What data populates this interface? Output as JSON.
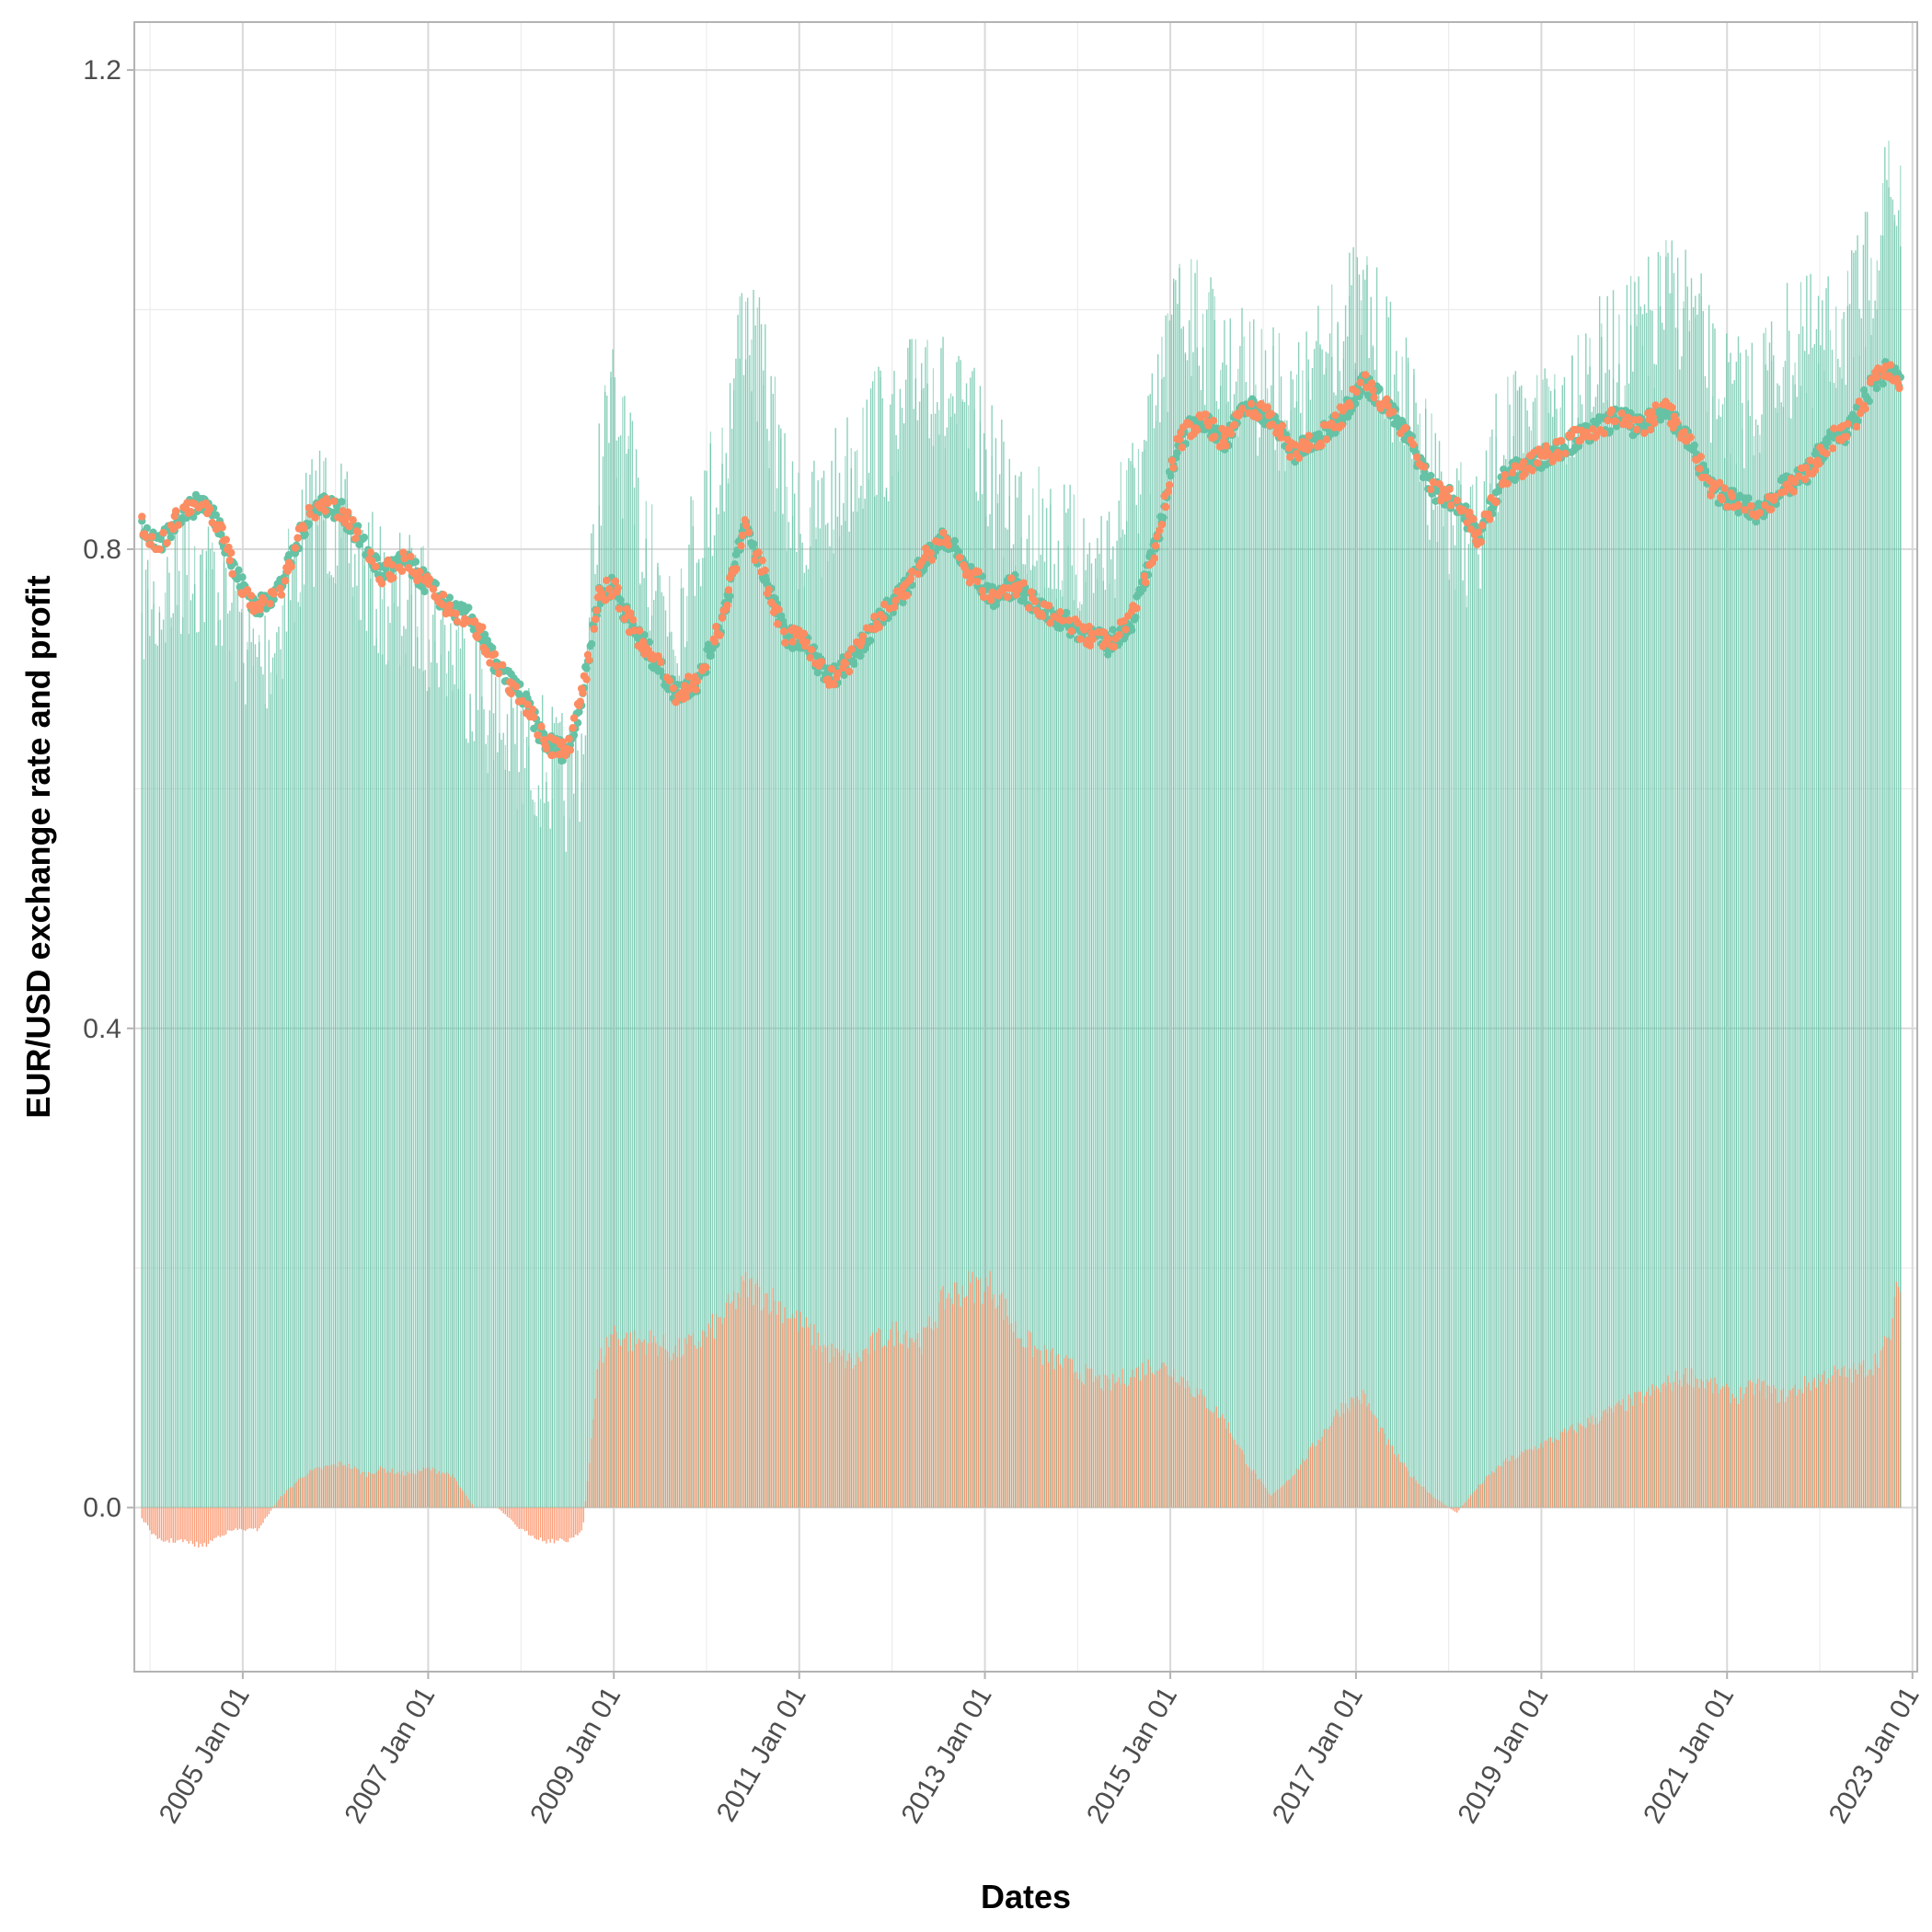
{
  "chart_data": {
    "type": "line",
    "title": "",
    "xlabel": "Dates",
    "ylabel": "EUR/USD exchange rate and profit",
    "x_type": "date",
    "xlim": [
      "2003-11-01",
      "2023-01-20"
    ],
    "ylim": [
      -0.137,
      1.24
    ],
    "x_ticks": [
      "2005-01-01",
      "2007-01-01",
      "2009-01-01",
      "2011-01-01",
      "2013-01-01",
      "2015-01-01",
      "2017-01-01",
      "2019-01-01",
      "2021-01-01",
      "2023-01-01"
    ],
    "x_tick_labels": [
      "2005 Jan 01",
      "2007 Jan 01",
      "2009 Jan 01",
      "2011 Jan 01",
      "2013 Jan 01",
      "2015 Jan 01",
      "2017 Jan 01",
      "2019 Jan 01",
      "2021 Jan 01",
      "2023 Jan 01"
    ],
    "y_ticks": [
      0.0,
      0.4,
      0.8,
      1.2
    ],
    "y_tick_labels": [
      "0.0",
      "0.4",
      "0.8",
      "1.2"
    ],
    "grid": true,
    "legend": "none",
    "colors": {
      "green": "#66c2a5",
      "orange": "#fc8d62",
      "panel_border": "#b3b3b3",
      "grid_major": "#d9d9d9",
      "grid_minor": "#ececec"
    },
    "series": [
      {
        "color": "#66c2a5",
        "style": "points",
        "x": [
          "2003-12-01",
          "2004-02-01",
          "2004-05-01",
          "2004-08-01",
          "2004-10-01",
          "2004-12-01",
          "2005-03-01",
          "2005-06-01",
          "2005-09-01",
          "2005-11-01",
          "2006-02-01",
          "2006-05-01",
          "2006-07-01",
          "2006-10-01",
          "2007-01-01",
          "2007-04-01",
          "2007-07-01",
          "2007-10-01",
          "2008-01-01",
          "2008-04-01",
          "2008-07-01",
          "2008-09-01",
          "2008-11-01",
          "2009-01-01",
          "2009-03-01",
          "2009-06-01",
          "2009-09-01",
          "2009-12-01",
          "2010-03-01",
          "2010-06-01",
          "2010-09-01",
          "2010-11-01",
          "2011-02-01",
          "2011-05-01",
          "2011-08-01",
          "2011-11-01",
          "2012-02-01",
          "2012-05-01",
          "2012-08-01",
          "2012-11-01",
          "2013-02-01",
          "2013-05-01",
          "2013-08-01",
          "2013-11-01",
          "2014-02-01",
          "2014-05-01",
          "2014-08-01",
          "2014-11-01",
          "2015-02-01",
          "2015-05-01",
          "2015-08-01",
          "2015-11-01",
          "2016-02-01",
          "2016-05-01",
          "2016-08-01",
          "2016-11-01",
          "2017-02-01",
          "2017-05-01",
          "2017-08-01",
          "2017-11-01",
          "2018-02-01",
          "2018-05-01",
          "2018-08-01",
          "2018-11-01",
          "2019-02-01",
          "2019-05-01",
          "2019-08-01",
          "2019-11-01",
          "2020-02-01",
          "2020-05-01",
          "2020-08-01",
          "2020-11-01",
          "2021-02-01",
          "2021-05-01",
          "2021-08-01",
          "2021-11-01",
          "2022-02-01",
          "2022-05-01",
          "2022-08-01",
          "2022-10-01",
          "2022-11-15"
        ],
        "y": [
          0.82,
          0.8,
          0.83,
          0.84,
          0.82,
          0.78,
          0.75,
          0.77,
          0.82,
          0.84,
          0.83,
          0.8,
          0.78,
          0.79,
          0.77,
          0.75,
          0.74,
          0.7,
          0.68,
          0.64,
          0.63,
          0.68,
          0.76,
          0.77,
          0.74,
          0.71,
          0.68,
          0.69,
          0.74,
          0.82,
          0.77,
          0.73,
          0.72,
          0.69,
          0.71,
          0.74,
          0.76,
          0.79,
          0.81,
          0.78,
          0.76,
          0.77,
          0.75,
          0.74,
          0.73,
          0.72,
          0.74,
          0.8,
          0.89,
          0.91,
          0.89,
          0.92,
          0.91,
          0.88,
          0.89,
          0.91,
          0.94,
          0.92,
          0.89,
          0.85,
          0.84,
          0.81,
          0.86,
          0.87,
          0.88,
          0.89,
          0.9,
          0.91,
          0.9,
          0.92,
          0.89,
          0.85,
          0.84,
          0.83,
          0.85,
          0.86,
          0.89,
          0.9,
          0.94,
          0.95,
          0.94
        ]
      },
      {
        "color": "#fc8d62",
        "style": "points",
        "x": [
          "2003-12-01",
          "2004-02-01",
          "2004-05-01",
          "2004-08-01",
          "2004-10-01",
          "2004-12-01",
          "2005-03-01",
          "2005-06-01",
          "2005-09-01",
          "2005-11-01",
          "2006-02-01",
          "2006-05-01",
          "2006-07-01",
          "2006-10-01",
          "2007-01-01",
          "2007-04-01",
          "2007-07-01",
          "2007-10-01",
          "2008-01-01",
          "2008-04-01",
          "2008-07-01",
          "2008-09-01",
          "2008-11-01",
          "2009-01-01",
          "2009-03-01",
          "2009-06-01",
          "2009-09-01",
          "2009-12-01",
          "2010-03-01",
          "2010-06-01",
          "2010-09-01",
          "2010-11-01",
          "2011-02-01",
          "2011-05-01",
          "2011-08-01",
          "2011-11-01",
          "2012-02-01",
          "2012-05-01",
          "2012-08-01",
          "2012-11-01",
          "2013-02-01",
          "2013-05-01",
          "2013-08-01",
          "2013-11-01",
          "2014-02-01",
          "2014-05-01",
          "2014-08-01",
          "2014-11-01",
          "2015-02-01",
          "2015-05-01",
          "2015-08-01",
          "2015-11-01",
          "2016-02-01",
          "2016-05-01",
          "2016-08-01",
          "2016-11-01",
          "2017-02-01",
          "2017-05-01",
          "2017-08-01",
          "2017-11-01",
          "2018-02-01",
          "2018-05-01",
          "2018-08-01",
          "2018-11-01",
          "2019-02-01",
          "2019-05-01",
          "2019-08-01",
          "2019-11-01",
          "2020-02-01",
          "2020-05-01",
          "2020-08-01",
          "2020-11-01",
          "2021-02-01",
          "2021-05-01",
          "2021-08-01",
          "2021-11-01",
          "2022-02-01",
          "2022-05-01",
          "2022-08-01",
          "2022-10-01",
          "2022-11-15"
        ],
        "y": [
          0.82,
          0.8,
          0.83,
          0.84,
          0.82,
          0.78,
          0.75,
          0.77,
          0.82,
          0.84,
          0.83,
          0.8,
          0.78,
          0.79,
          0.77,
          0.75,
          0.74,
          0.7,
          0.68,
          0.64,
          0.63,
          0.68,
          0.76,
          0.77,
          0.74,
          0.71,
          0.68,
          0.69,
          0.74,
          0.82,
          0.77,
          0.73,
          0.72,
          0.69,
          0.71,
          0.74,
          0.76,
          0.79,
          0.81,
          0.78,
          0.76,
          0.77,
          0.75,
          0.74,
          0.73,
          0.72,
          0.74,
          0.8,
          0.89,
          0.91,
          0.89,
          0.92,
          0.91,
          0.88,
          0.89,
          0.91,
          0.94,
          0.92,
          0.89,
          0.85,
          0.84,
          0.81,
          0.86,
          0.87,
          0.88,
          0.89,
          0.9,
          0.91,
          0.9,
          0.92,
          0.89,
          0.85,
          0.84,
          0.83,
          0.85,
          0.86,
          0.89,
          0.9,
          0.94,
          0.95,
          0.94
        ]
      },
      {
        "color": "#66c2a5",
        "style": "spikes",
        "x": [
          "2003-12-01",
          "2004-02-01",
          "2004-05-01",
          "2004-08-01",
          "2004-10-01",
          "2004-12-01",
          "2005-03-01",
          "2005-06-01",
          "2005-09-01",
          "2005-11-01",
          "2006-02-01",
          "2006-05-01",
          "2006-07-01",
          "2006-10-01",
          "2007-01-01",
          "2007-04-01",
          "2007-07-01",
          "2007-10-01",
          "2008-01-01",
          "2008-04-01",
          "2008-07-01",
          "2008-09-01",
          "2008-11-01",
          "2009-01-01",
          "2009-03-01",
          "2009-06-01",
          "2009-09-01",
          "2009-12-01",
          "2010-03-01",
          "2010-06-01",
          "2010-09-01",
          "2010-11-01",
          "2011-02-01",
          "2011-05-01",
          "2011-08-01",
          "2011-11-01",
          "2012-02-01",
          "2012-05-01",
          "2012-08-01",
          "2012-11-01",
          "2013-02-01",
          "2013-05-01",
          "2013-08-01",
          "2013-11-01",
          "2014-02-01",
          "2014-05-01",
          "2014-08-01",
          "2014-11-01",
          "2015-02-01",
          "2015-05-01",
          "2015-08-01",
          "2015-11-01",
          "2016-02-01",
          "2016-05-01",
          "2016-08-01",
          "2016-11-01",
          "2017-02-01",
          "2017-05-01",
          "2017-08-01",
          "2017-11-01",
          "2018-02-01",
          "2018-05-01",
          "2018-08-01",
          "2018-11-01",
          "2019-02-01",
          "2019-05-01",
          "2019-08-01",
          "2019-11-01",
          "2020-02-01",
          "2020-05-01",
          "2020-08-01",
          "2020-11-01",
          "2021-02-01",
          "2021-05-01",
          "2021-08-01",
          "2021-11-01",
          "2022-02-01",
          "2022-05-01",
          "2022-08-01",
          "2022-10-01",
          "2022-11-15"
        ],
        "y": [
          0.82,
          0.81,
          0.84,
          0.84,
          0.83,
          0.8,
          0.76,
          0.8,
          0.87,
          0.9,
          0.87,
          0.84,
          0.82,
          0.82,
          0.8,
          0.78,
          0.75,
          0.71,
          0.7,
          0.68,
          0.66,
          0.7,
          0.92,
          0.98,
          0.92,
          0.84,
          0.8,
          0.88,
          0.92,
          1.06,
          0.98,
          0.9,
          0.87,
          0.9,
          0.93,
          0.96,
          0.95,
          1.02,
          0.98,
          0.96,
          0.92,
          0.9,
          0.88,
          0.86,
          0.85,
          0.86,
          0.9,
          0.96,
          1.06,
          1.04,
          1.02,
          1.0,
          0.99,
          0.97,
          1.01,
          1.05,
          1.06,
          1.02,
          0.97,
          0.92,
          0.88,
          0.86,
          0.96,
          0.94,
          0.98,
          0.99,
          1.01,
          1.02,
          1.04,
          1.06,
          1.07,
          1.0,
          0.98,
          0.99,
          1.02,
          1.03,
          1.03,
          1.05,
          1.1,
          1.16,
          1.14
        ]
      },
      {
        "color": "#fc8d62",
        "style": "spikes",
        "x": [
          "2003-12-01",
          "2004-02-01",
          "2004-05-01",
          "2004-08-01",
          "2004-10-01",
          "2004-12-01",
          "2005-03-01",
          "2005-06-01",
          "2005-09-01",
          "2005-11-01",
          "2006-02-01",
          "2006-05-01",
          "2006-07-01",
          "2006-10-01",
          "2007-01-01",
          "2007-04-01",
          "2007-07-01",
          "2007-10-01",
          "2008-01-01",
          "2008-04-01",
          "2008-07-01",
          "2008-09-01",
          "2008-11-01",
          "2009-01-01",
          "2009-03-01",
          "2009-06-01",
          "2009-09-01",
          "2009-12-01",
          "2010-03-01",
          "2010-06-01",
          "2010-09-01",
          "2010-11-01",
          "2011-02-01",
          "2011-05-01",
          "2011-08-01",
          "2011-11-01",
          "2012-02-01",
          "2012-05-01",
          "2012-08-01",
          "2012-11-01",
          "2013-02-01",
          "2013-05-01",
          "2013-08-01",
          "2013-11-01",
          "2014-02-01",
          "2014-05-01",
          "2014-08-01",
          "2014-11-01",
          "2015-02-01",
          "2015-05-01",
          "2015-08-01",
          "2015-11-01",
          "2016-02-01",
          "2016-05-01",
          "2016-08-01",
          "2016-11-01",
          "2017-02-01",
          "2017-05-01",
          "2017-08-01",
          "2017-11-01",
          "2018-02-01",
          "2018-05-01",
          "2018-08-01",
          "2018-11-01",
          "2019-02-01",
          "2019-05-01",
          "2019-08-01",
          "2019-11-01",
          "2020-02-01",
          "2020-05-01",
          "2020-08-01",
          "2020-11-01",
          "2021-02-01",
          "2021-05-01",
          "2021-08-01",
          "2021-11-01",
          "2022-02-01",
          "2022-05-01",
          "2022-08-01",
          "2022-10-01",
          "2022-11-15"
        ],
        "y": [
          -0.01,
          -0.03,
          -0.03,
          -0.035,
          -0.025,
          -0.02,
          -0.02,
          0.01,
          0.03,
          0.035,
          0.04,
          0.03,
          0.035,
          0.03,
          0.035,
          0.03,
          0.0,
          0.0,
          -0.02,
          -0.03,
          -0.03,
          -0.02,
          0.13,
          0.16,
          0.15,
          0.15,
          0.14,
          0.15,
          0.17,
          0.2,
          0.19,
          0.18,
          0.16,
          0.14,
          0.13,
          0.15,
          0.16,
          0.15,
          0.19,
          0.2,
          0.2,
          0.16,
          0.14,
          0.13,
          0.12,
          0.11,
          0.12,
          0.13,
          0.12,
          0.1,
          0.08,
          0.04,
          0.01,
          0.03,
          0.06,
          0.09,
          0.1,
          0.06,
          0.03,
          0.01,
          -0.005,
          0.02,
          0.04,
          0.05,
          0.06,
          0.07,
          0.08,
          0.09,
          0.1,
          0.11,
          0.12,
          0.11,
          0.1,
          0.11,
          0.1,
          0.11,
          0.12,
          0.12,
          0.13,
          0.15,
          0.21
        ]
      }
    ]
  }
}
